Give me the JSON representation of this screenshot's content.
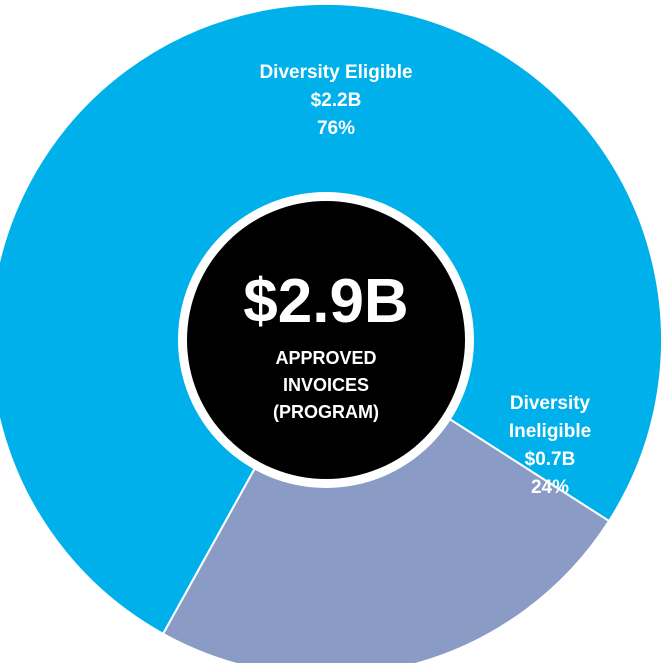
{
  "chart_data": {
    "type": "pie",
    "style": "donut",
    "slices": [
      {
        "name_lines": [
          "Diversity Eligible"
        ],
        "value_label": "$2.2B",
        "percent_label": "76%",
        "value": 2.2,
        "percent": 76,
        "color": "#00B0EB"
      },
      {
        "name_lines": [
          "Diversity",
          "Ineligible"
        ],
        "value_label": "$0.7B",
        "percent_label": "24%",
        "value": 0.7,
        "percent": 24,
        "color": "#8A9BC6"
      }
    ],
    "center": {
      "value": "$2.9B",
      "label_lines": [
        "APPROVED",
        "INVOICES",
        "(PROGRAM)"
      ],
      "color": "#000000"
    },
    "label_color": "#FFFFFF"
  }
}
